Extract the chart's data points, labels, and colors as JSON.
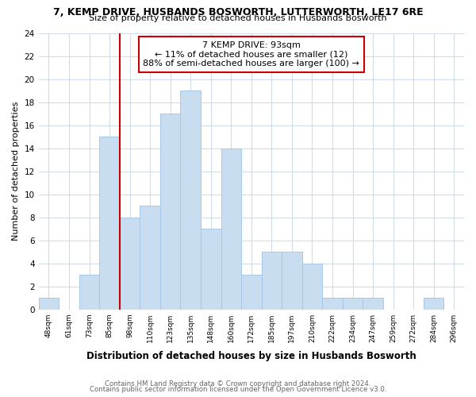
{
  "title": "7, KEMP DRIVE, HUSBANDS BOSWORTH, LUTTERWORTH, LE17 6RE",
  "subtitle": "Size of property relative to detached houses in Husbands Bosworth",
  "xlabel": "Distribution of detached houses by size in Husbands Bosworth",
  "ylabel": "Number of detached properties",
  "bin_labels": [
    "48sqm",
    "61sqm",
    "73sqm",
    "85sqm",
    "98sqm",
    "110sqm",
    "123sqm",
    "135sqm",
    "148sqm",
    "160sqm",
    "172sqm",
    "185sqm",
    "197sqm",
    "210sqm",
    "222sqm",
    "234sqm",
    "247sqm",
    "259sqm",
    "272sqm",
    "284sqm",
    "296sqm"
  ],
  "bar_values": [
    1,
    0,
    3,
    15,
    8,
    9,
    17,
    19,
    7,
    14,
    3,
    5,
    5,
    4,
    1,
    1,
    1,
    0,
    0,
    1,
    0
  ],
  "bar_color": "#c9ddf0",
  "bar_edge_color": "#a8c8e8",
  "marker_label": "7 KEMP DRIVE: 93sqm",
  "annotation_line1": "← 11% of detached houses are smaller (12)",
  "annotation_line2": "88% of semi-detached houses are larger (100) →",
  "annotation_box_color": "#ffffff",
  "annotation_box_edge": "#cc0000",
  "vline_color": "#cc0000",
  "vline_index": 4,
  "ylim": [
    0,
    24
  ],
  "yticks": [
    0,
    2,
    4,
    6,
    8,
    10,
    12,
    14,
    16,
    18,
    20,
    22,
    24
  ],
  "footer1": "Contains HM Land Registry data © Crown copyright and database right 2024.",
  "footer2": "Contains public sector information licensed under the Open Government Licence v3.0.",
  "bg_color": "#ffffff",
  "grid_color": "#d0dce8"
}
